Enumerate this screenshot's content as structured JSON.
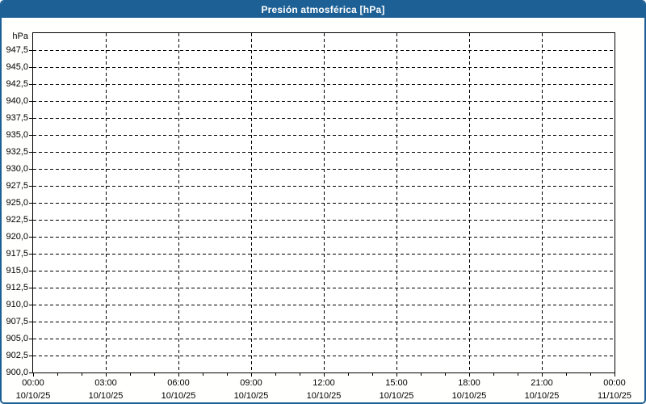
{
  "window": {
    "title": "Presión atmosférica [hPa]"
  },
  "colors": {
    "frame_blue": "#1d6095",
    "titlebar_text": "#ffffff",
    "plot_background": "#ffffff",
    "grid": "#000000",
    "label_text": "#000000"
  },
  "chart_data": {
    "type": "line",
    "title": "Presión atmosférica [hPa]",
    "xlabel": "",
    "ylabel": "hPa",
    "grid": "dashed",
    "legend": "none",
    "series": [],
    "y_axis": {
      "unit_label": "hPa",
      "min": 900.0,
      "max": 950.0,
      "tick_step": 2.5,
      "tick_values": [
        947.5,
        945.0,
        942.5,
        940.0,
        937.5,
        935.0,
        932.5,
        930.0,
        927.5,
        925.0,
        922.5,
        920.0,
        917.5,
        915.0,
        912.5,
        910.0,
        907.5,
        905.0,
        902.5,
        900.0
      ],
      "tick_labels": [
        "947,5",
        "945,0",
        "942,5",
        "940,0",
        "937,5",
        "935,0",
        "932,5",
        "930,0",
        "927,5",
        "925,0",
        "922,5",
        "920,0",
        "917,5",
        "915,0",
        "912,5",
        "910,0",
        "907,5",
        "905,0",
        "902,5",
        "900,0"
      ]
    },
    "x_axis": {
      "range_hours": 24,
      "major_tick_step_hours": 3,
      "minor_tick_step_hours": 1,
      "tick_times": [
        "00:00",
        "03:00",
        "06:00",
        "09:00",
        "12:00",
        "15:00",
        "18:00",
        "21:00",
        "00:00"
      ],
      "tick_dates": [
        "10/10/25",
        "10/10/25",
        "10/10/25",
        "10/10/25",
        "10/10/25",
        "10/10/25",
        "10/10/25",
        "10/10/25",
        "11/10/25"
      ]
    }
  }
}
